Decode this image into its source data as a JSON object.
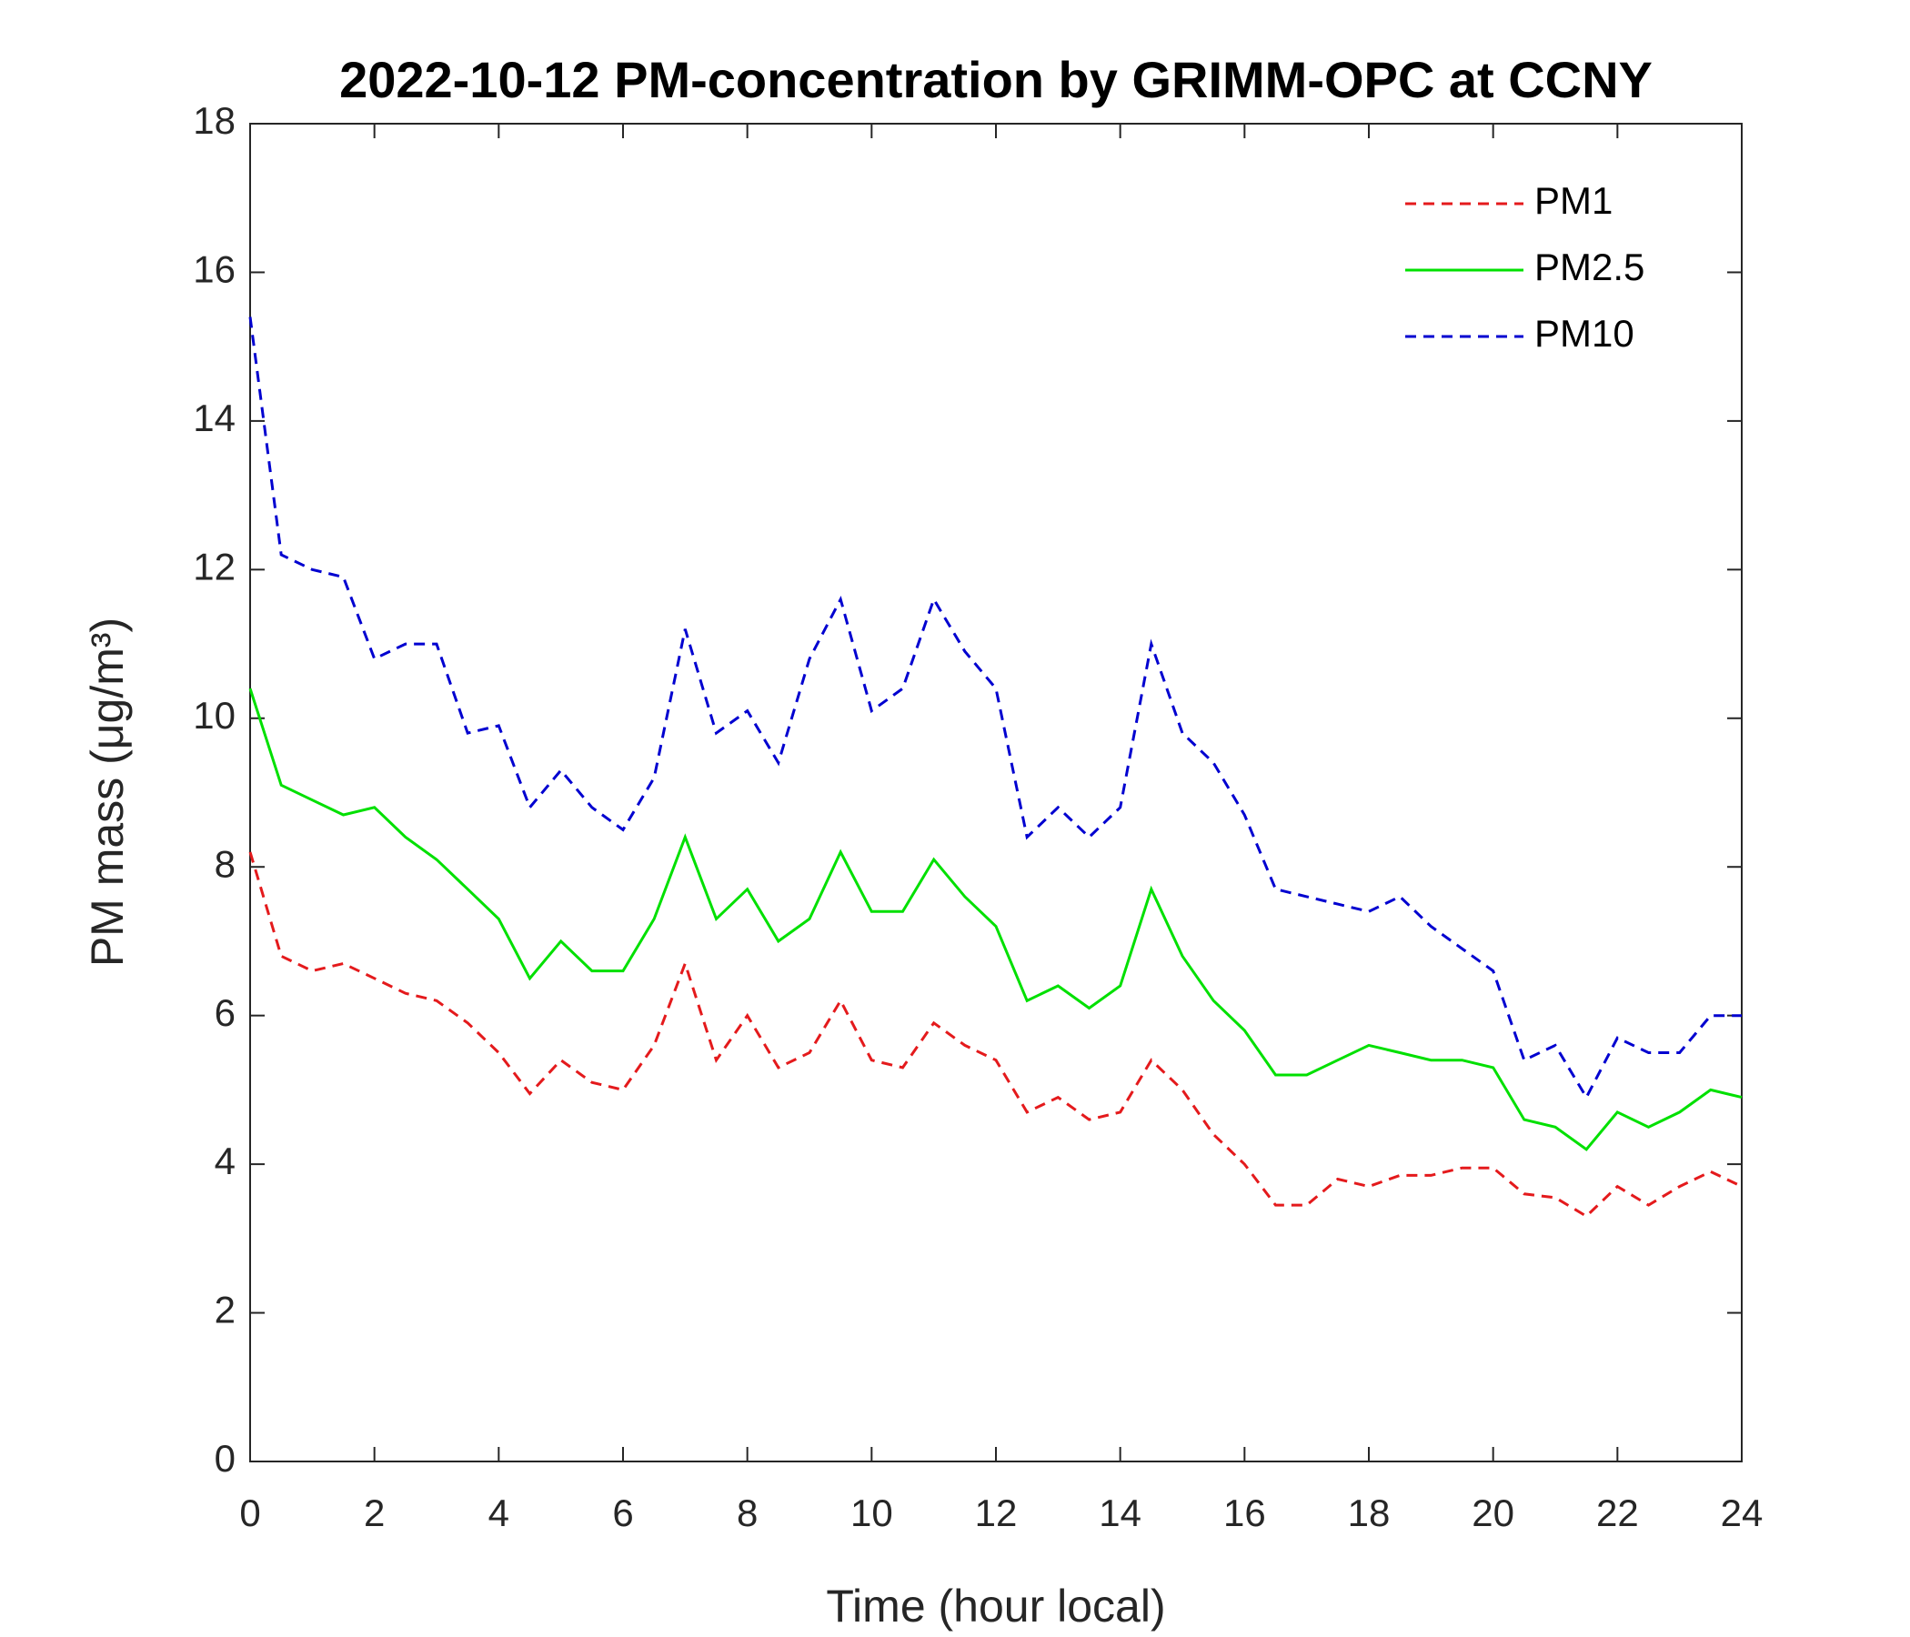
{
  "chart_data": {
    "type": "line",
    "title": "2022-10-12 PM-concentration by GRIMM-OPC at CCNY",
    "x_label": "Time (hour local)",
    "y_label": "PM mass (μg/m³)",
    "x": [
      0,
      0.5,
      1,
      1.5,
      2,
      2.5,
      3,
      3.5,
      4,
      4.5,
      5,
      5.5,
      6,
      6.5,
      7,
      7.5,
      8,
      8.5,
      9,
      9.5,
      10,
      10.5,
      11,
      11.5,
      12,
      12.5,
      13,
      13.5,
      14,
      14.5,
      15,
      15.5,
      16,
      16.5,
      17,
      17.5,
      18,
      18.5,
      19,
      19.5,
      20,
      20.5,
      21,
      21.5,
      22,
      22.5,
      23,
      23.5,
      24
    ],
    "series": [
      {
        "name": "PM1",
        "color": "#e41a1c",
        "dash": true,
        "values": [
          8.2,
          6.8,
          6.6,
          6.7,
          6.5,
          6.3,
          6.2,
          5.9,
          5.5,
          4.95,
          5.4,
          5.1,
          5.0,
          5.6,
          6.7,
          5.4,
          6.0,
          5.3,
          5.5,
          6.2,
          5.4,
          5.3,
          5.9,
          5.6,
          5.4,
          4.7,
          4.9,
          4.6,
          4.7,
          5.4,
          5.0,
          4.4,
          4.0,
          3.45,
          3.45,
          3.8,
          3.7,
          3.85,
          3.85,
          3.95,
          3.95,
          3.6,
          3.55,
          3.3,
          3.7,
          3.45,
          3.7,
          3.9,
          3.7
        ]
      },
      {
        "name": "PM2.5",
        "color": "#00e000",
        "dash": false,
        "values": [
          10.4,
          9.1,
          8.9,
          8.7,
          8.8,
          8.4,
          8.1,
          7.7,
          7.3,
          6.5,
          7.0,
          6.6,
          6.6,
          7.3,
          8.4,
          7.3,
          7.7,
          7.0,
          7.3,
          8.2,
          7.4,
          7.4,
          8.1,
          7.6,
          7.2,
          6.2,
          6.4,
          6.1,
          6.4,
          7.7,
          6.8,
          6.2,
          5.8,
          5.2,
          5.2,
          5.4,
          5.6,
          5.5,
          5.4,
          5.4,
          5.3,
          4.6,
          4.5,
          4.2,
          4.7,
          4.5,
          4.7,
          5.0,
          4.9
        ]
      },
      {
        "name": "PM10",
        "color": "#0000d0",
        "dash": true,
        "values": [
          15.4,
          12.2,
          12.0,
          11.9,
          10.8,
          11.0,
          11.0,
          9.8,
          9.9,
          8.8,
          9.3,
          8.8,
          8.5,
          9.2,
          11.2,
          9.8,
          10.1,
          9.4,
          10.8,
          11.6,
          10.1,
          10.4,
          11.6,
          10.9,
          10.4,
          8.4,
          8.8,
          8.4,
          8.8,
          11.0,
          9.8,
          9.4,
          8.7,
          7.7,
          7.6,
          7.5,
          7.4,
          7.6,
          7.2,
          6.9,
          6.6,
          5.4,
          5.6,
          4.9,
          5.7,
          5.5,
          5.5,
          6.0,
          6.0
        ]
      }
    ],
    "xlim": [
      0,
      24
    ],
    "xticks": [
      0,
      2,
      4,
      6,
      8,
      10,
      12,
      14,
      16,
      18,
      20,
      22,
      24
    ],
    "ylim": [
      0,
      18
    ],
    "yticks": [
      0,
      2,
      4,
      6,
      8,
      10,
      12,
      14,
      16,
      18
    ],
    "grid": false,
    "legend": "upper right"
  }
}
